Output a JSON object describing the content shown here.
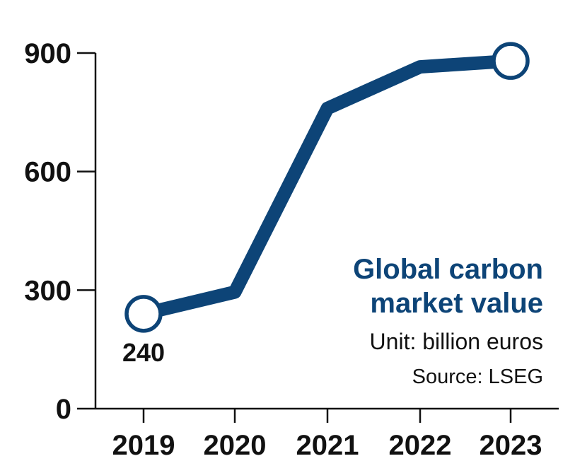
{
  "chart_data": {
    "type": "line",
    "title_lines": [
      "Global carbon",
      "market value"
    ],
    "subtitle": "Unit: billion euros",
    "source": "Source: LSEG",
    "categories": [
      "2019",
      "2020",
      "2021",
      "2022",
      "2023"
    ],
    "series": [
      {
        "values": [
          240,
          295,
          760,
          865,
          880
        ]
      }
    ],
    "data_labels": [
      {
        "index": 0,
        "text": "240"
      }
    ],
    "endpoint_markers": [
      0,
      4
    ],
    "yticks": [
      0,
      300,
      600,
      900
    ],
    "ylim": [
      0,
      900
    ],
    "grid": false,
    "colors": {
      "line": "#0d4477",
      "marker_fill": "#ffffff",
      "text": "#111111",
      "title": "#0d4477"
    }
  }
}
